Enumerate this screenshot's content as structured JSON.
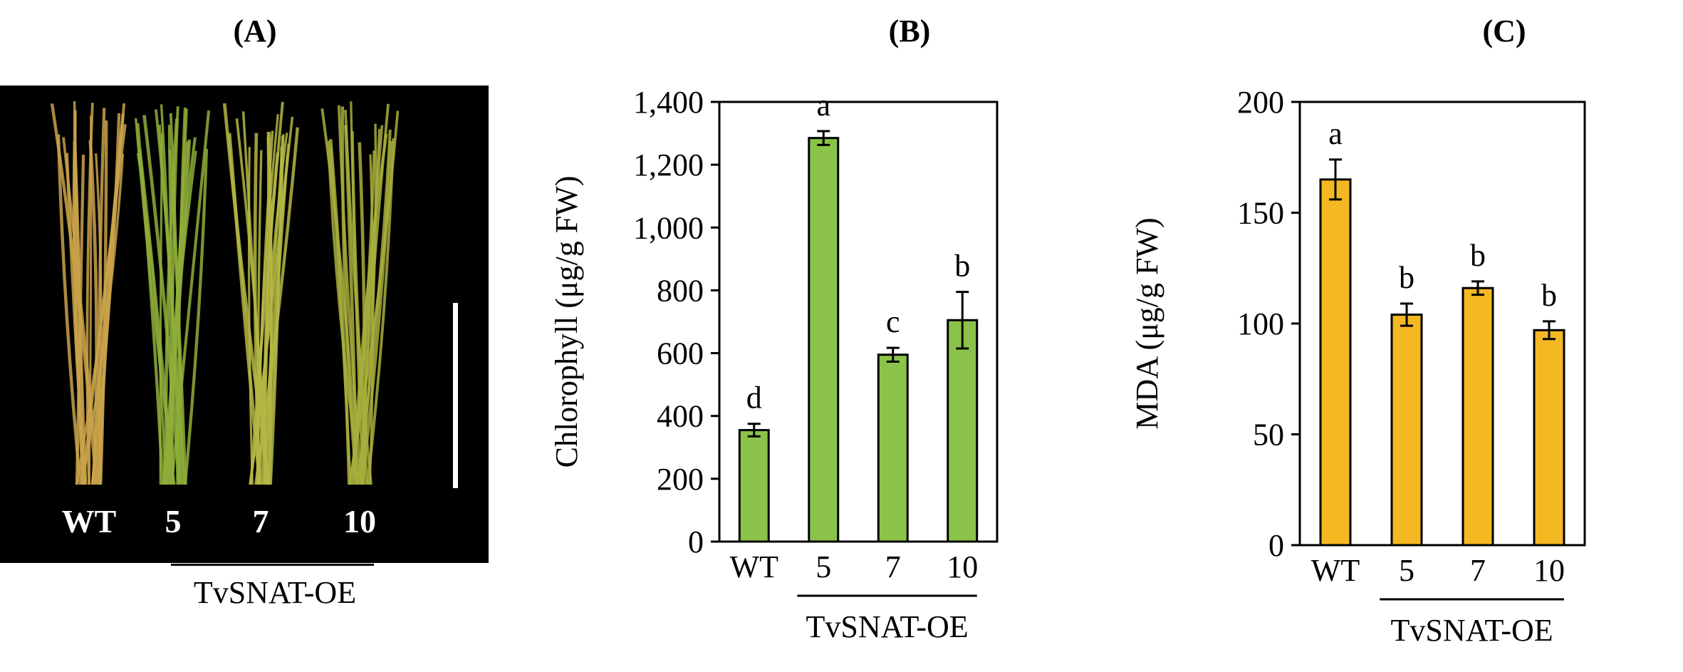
{
  "panels": {
    "a_label": "(A)",
    "b_label": "(B)",
    "c_label": "(C)"
  },
  "photo": {
    "samples": [
      "WT",
      "5",
      "7",
      "10"
    ],
    "group_label": "TvSNAT-OE",
    "colors": {
      "background": "#000000",
      "wt_leaf": "#c9a24a",
      "oe_leaf": "#8fae3a",
      "scale_bar": "#ffffff"
    }
  },
  "chart_data": [
    {
      "type": "bar",
      "panel": "(B)",
      "categories": [
        "WT",
        "5",
        "7",
        "10"
      ],
      "values": [
        355,
        1285,
        595,
        705
      ],
      "errors": [
        20,
        22,
        22,
        90
      ],
      "letters": [
        "d",
        "a",
        "c",
        "b"
      ],
      "ylabel": "Chlorophyll  (μg/g  FW)",
      "ylim": [
        0,
        1400
      ],
      "yticks": [
        0,
        200,
        400,
        600,
        800,
        1000,
        1200,
        1400
      ],
      "ytick_labels": [
        "0",
        "200",
        "400",
        "600",
        "800",
        "1,000",
        "1,200",
        "1,400"
      ],
      "group_label": "TvSNAT-OE",
      "bar_color": "#8bc34a",
      "grid": false
    },
    {
      "type": "bar",
      "panel": "(C)",
      "categories": [
        "WT",
        "5",
        "7",
        "10"
      ],
      "values": [
        165,
        104,
        116,
        97
      ],
      "errors": [
        9,
        5,
        3,
        4
      ],
      "letters": [
        "a",
        "b",
        "b",
        "b"
      ],
      "ylabel": "MDA (μg/g FW)",
      "ylim": [
        0,
        200
      ],
      "yticks": [
        0,
        50,
        100,
        150,
        200
      ],
      "ytick_labels": [
        "0",
        "50",
        "100",
        "150",
        "200"
      ],
      "group_label": "TvSNAT-OE",
      "bar_color": "#f4b823",
      "grid": false
    }
  ]
}
